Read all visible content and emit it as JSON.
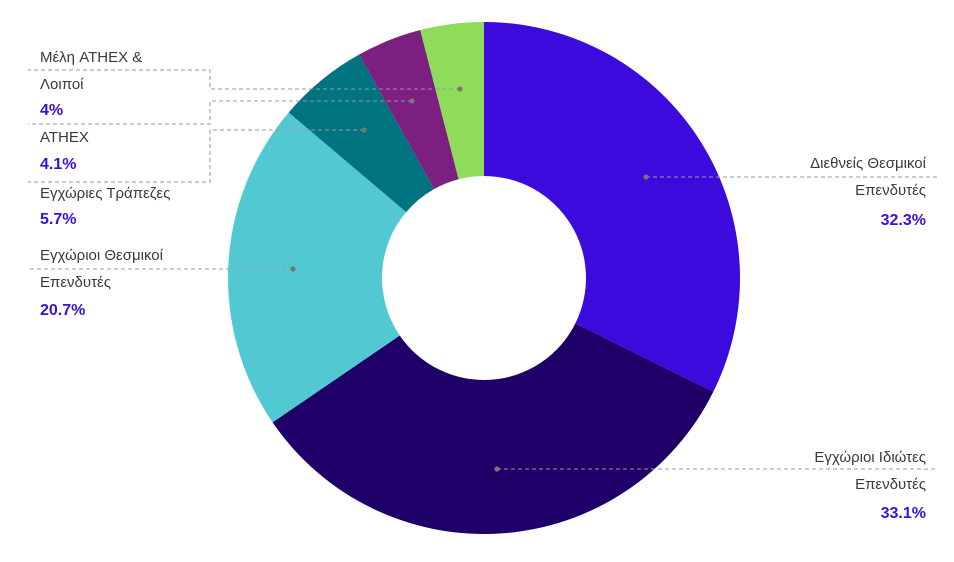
{
  "chart_data": {
    "type": "pie",
    "donut": true,
    "slices": [
      {
        "label_line1": "Διεθνείς Θεσμικοί",
        "label_line2": "Επενδυτές",
        "value": 32.3,
        "value_text": "32.3%",
        "color": "#3d0ade"
      },
      {
        "label_line1": "Εγχώριοι Ιδιώτες",
        "label_line2": "Επενδυτές",
        "value": 33.1,
        "value_text": "33.1%",
        "color": "#1e0068"
      },
      {
        "label_line1": "Εγχώριοι Θεσμικοί",
        "label_line2": "Επενδυτές",
        "value": 20.7,
        "value_text": "20.7%",
        "color": "#52c9d2"
      },
      {
        "label_line1": "Εγχώριες Τράπεζες",
        "label_line2": "",
        "value": 5.7,
        "value_text": "5.7%",
        "color": "#007380"
      },
      {
        "label_line1": "ATHEX",
        "label_line2": "",
        "value": 4.1,
        "value_text": "4.1%",
        "color": "#7b1f80"
      },
      {
        "label_line1": "Μέλη ATHEX &",
        "label_line2": "Λοιποί",
        "value": 4.0,
        "value_text": "4%",
        "color": "#8fdb5a"
      }
    ]
  }
}
